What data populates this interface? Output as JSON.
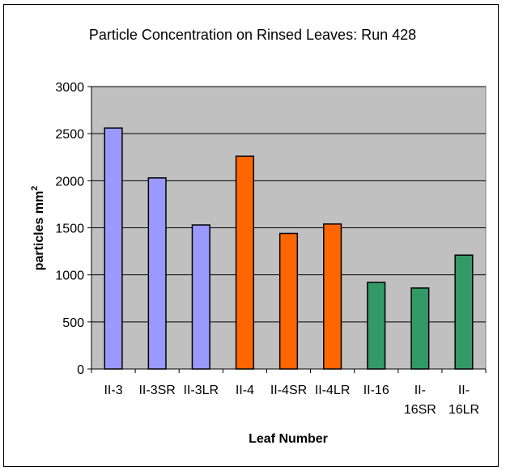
{
  "chart_data": {
    "type": "bar",
    "title": "Particle Concentration on Rinsed Leaves: Run 428",
    "xlabel": "Leaf Number",
    "ylabel": "particles mm",
    "ylabel_superscript": "2",
    "ylim": [
      0,
      3000
    ],
    "yticks": [
      0,
      500,
      1000,
      1500,
      2000,
      2500,
      3000
    ],
    "grid": true,
    "plot_background": "#c0c0c0",
    "categories": [
      [
        "II-3"
      ],
      [
        "II-3SR"
      ],
      [
        "II-3LR"
      ],
      [
        "II-4"
      ],
      [
        "II-4SR"
      ],
      [
        "II-4LR"
      ],
      [
        "II-16"
      ],
      [
        "II-",
        "16SR"
      ],
      [
        "II-",
        "16LR"
      ]
    ],
    "values": [
      2560,
      2030,
      1530,
      2260,
      1440,
      1540,
      920,
      860,
      1210
    ],
    "bar_colors": [
      "#9999ff",
      "#9999ff",
      "#9999ff",
      "#ff6600",
      "#ff6600",
      "#ff6600",
      "#339966",
      "#339966",
      "#339966"
    ]
  }
}
